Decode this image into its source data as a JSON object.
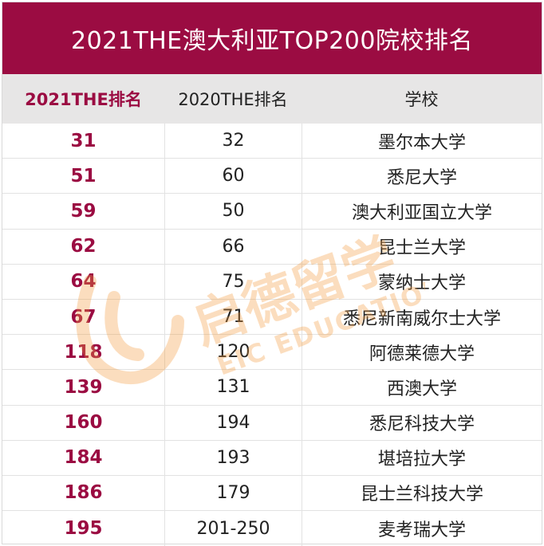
{
  "title": "2021THE澳大利亚TOP200院校排名",
  "headers": {
    "rank_2021": "2021THE排名",
    "rank_2020": "2020THE排名",
    "school": "学校"
  },
  "rows": [
    {
      "rank_2021": "31",
      "rank_2020": "32",
      "school": "墨尔本大学"
    },
    {
      "rank_2021": "51",
      "rank_2020": "60",
      "school": "悉尼大学"
    },
    {
      "rank_2021": "59",
      "rank_2020": "50",
      "school": "澳大利亚国立大学"
    },
    {
      "rank_2021": "62",
      "rank_2020": "66",
      "school": "昆士兰大学"
    },
    {
      "rank_2021": "64",
      "rank_2020": "75",
      "school": "蒙纳士大学"
    },
    {
      "rank_2021": "67",
      "rank_2020": "71",
      "school": "悉尼新南威尔士大学"
    },
    {
      "rank_2021": "118",
      "rank_2020": "120",
      "school": "阿德莱德大学"
    },
    {
      "rank_2021": "139",
      "rank_2020": "131",
      "school": "西澳大学"
    },
    {
      "rank_2021": "160",
      "rank_2020": "194",
      "school": "悉尼科技大学"
    },
    {
      "rank_2021": "184",
      "rank_2020": "193",
      "school": "堪培拉大学"
    },
    {
      "rank_2021": "186",
      "rank_2020": "179",
      "school": "昆士兰科技大学"
    },
    {
      "rank_2021": "195",
      "rank_2020": "201-250",
      "school": "麦考瑞大学"
    }
  ],
  "watermark": {
    "cn": "启德留学",
    "en": "EIC EDUCATION"
  },
  "colors": {
    "accent": "#9b0c42",
    "header_bg": "#e7e6e6",
    "watermark": "#f39a3c"
  }
}
